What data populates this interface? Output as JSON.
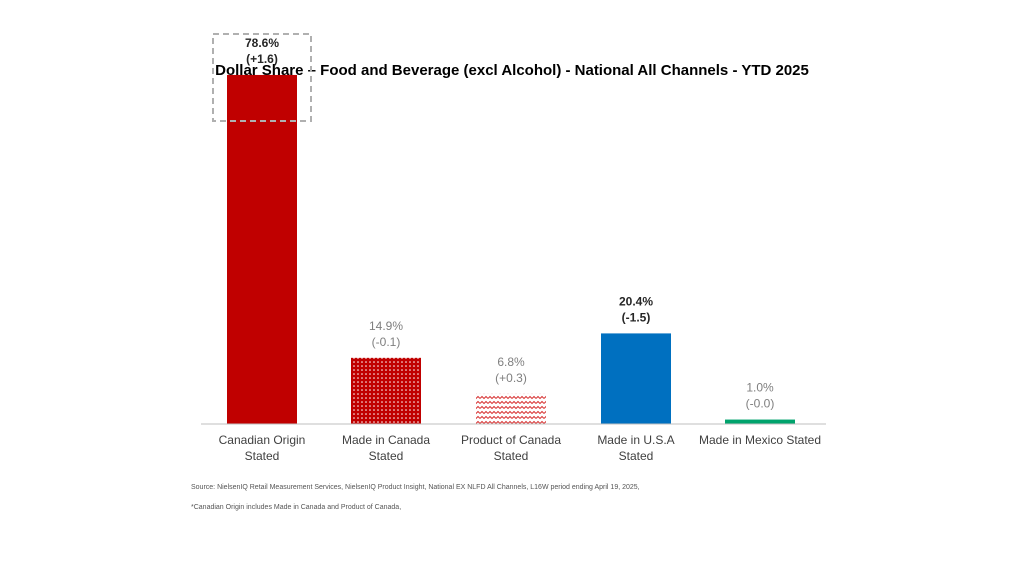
{
  "chart_data": {
    "type": "bar",
    "title": "Dollar Share – Food and Beverage (excl Alcohol) - National All Channels - YTD 2025",
    "categories": [
      [
        "Canadian Origin",
        "Stated"
      ],
      [
        "Made in Canada",
        "Stated"
      ],
      [
        "Product of Canada",
        "Stated"
      ],
      [
        "Made in U.S.A",
        "Stated"
      ],
      [
        "Made in Mexico Stated"
      ]
    ],
    "values": [
      78.6,
      14.9,
      6.8,
      20.4,
      1.0
    ],
    "value_labels": [
      "78.6%",
      "14.9%",
      "6.8%",
      "20.4%",
      "1.0%"
    ],
    "change_labels": [
      "(+1.6)",
      "(-0.1)",
      "(+0.3)",
      "(-1.5)",
      "(-0.0)"
    ],
    "bold_labels": [
      true,
      false,
      false,
      true,
      false
    ],
    "fills": [
      "solid",
      "dots",
      "zigzag",
      "solid",
      "solid"
    ],
    "colors": [
      "#c00000",
      "#c00000",
      "#e06060",
      "#0070c0",
      "#00a36c"
    ],
    "highlighted_index": 0,
    "ylim": [
      0,
      80
    ],
    "xlabel": "",
    "ylabel": ""
  },
  "footnotes": {
    "source": "Source: NielsenIQ Retail Measurement Services, NielsenIQ Product Insight, National EX NLFD All Channels, L16W period ending April 19, 2025,",
    "note": "*Canadian Origin includes Made in Canada and Product of Canada,"
  }
}
